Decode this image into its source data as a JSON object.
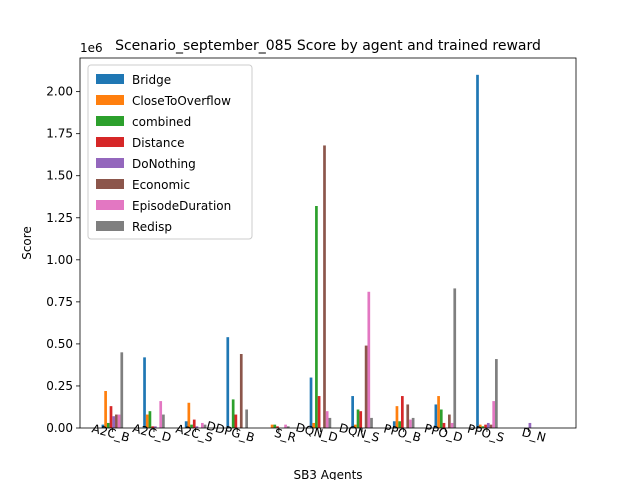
{
  "chart_data": {
    "type": "bar",
    "title": "Scenario_september_085 Score by agent and trained reward",
    "xlabel": "SB3 Agents",
    "ylabel": "Score",
    "y_scale_label": "1e6",
    "ylim": [
      0,
      2.2
    ],
    "yticks": [
      "0.00",
      "0.25",
      "0.50",
      "0.75",
      "1.00",
      "1.25",
      "1.50",
      "1.75",
      "2.00"
    ],
    "categories": [
      "A2C_B",
      "A2C_D",
      "A2C_S",
      "DDPG_B",
      "S_R",
      "DQN_D",
      "DQN_S",
      "PPO_B",
      "PPO_D",
      "PPO_S",
      "D_N"
    ],
    "legend_position": "upper-left",
    "series": [
      {
        "name": "Bridge",
        "color": "#1f77b4",
        "values": [
          0.02,
          0.42,
          0.04,
          0.54,
          0.0,
          0.3,
          0.19,
          0.04,
          0.14,
          2.1,
          0.0
        ]
      },
      {
        "name": "CloseToOverflow",
        "color": "#ff7f0e",
        "values": [
          0.22,
          0.08,
          0.15,
          0.0,
          0.02,
          0.03,
          0.02,
          0.13,
          0.19,
          0.02,
          0.0
        ]
      },
      {
        "name": "combined",
        "color": "#2ca02c",
        "values": [
          0.03,
          0.1,
          0.02,
          0.17,
          0.02,
          1.32,
          0.11,
          0.04,
          0.11,
          0.01,
          0.0
        ]
      },
      {
        "name": "Distance",
        "color": "#d62728",
        "values": [
          0.13,
          0.01,
          0.05,
          0.08,
          0.01,
          0.19,
          0.1,
          0.19,
          0.03,
          0.02,
          0.0
        ]
      },
      {
        "name": "DoNothing",
        "color": "#9467bd",
        "values": [
          0.07,
          0.01,
          0.01,
          0.0,
          0.0,
          0.0,
          0.0,
          0.0,
          0.0,
          0.03,
          0.03
        ]
      },
      {
        "name": "Economic",
        "color": "#8c564b",
        "values": [
          0.08,
          0.0,
          0.0,
          0.44,
          0.0,
          1.68,
          0.49,
          0.14,
          0.08,
          0.02,
          0.0
        ]
      },
      {
        "name": "EpisodeDuration",
        "color": "#e377c2",
        "values": [
          0.08,
          0.16,
          0.03,
          0.0,
          0.02,
          0.1,
          0.81,
          0.05,
          0.03,
          0.16,
          0.0
        ]
      },
      {
        "name": "Redisp",
        "color": "#7f7f7f",
        "values": [
          0.45,
          0.08,
          0.02,
          0.11,
          0.01,
          0.06,
          0.06,
          0.06,
          0.83,
          0.41,
          0.0
        ]
      }
    ]
  }
}
